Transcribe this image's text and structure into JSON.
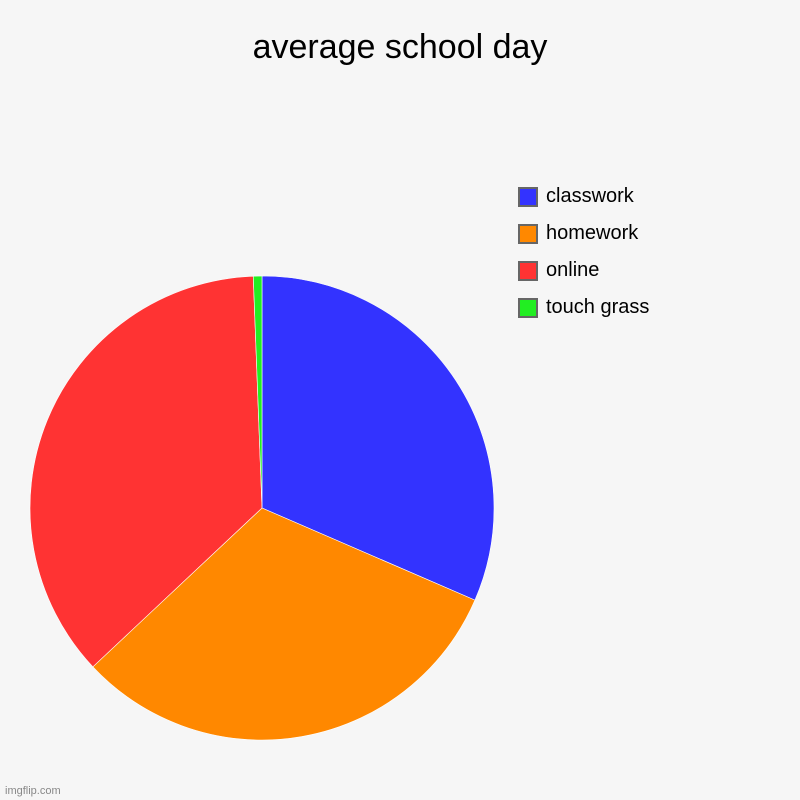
{
  "chart_data": {
    "type": "pie",
    "title": "average school day",
    "start_angle_deg": 0,
    "direction": "clockwise",
    "slices": [
      {
        "label": "classwork",
        "value": 31.5,
        "color": "#3333ff"
      },
      {
        "label": "homework",
        "value": 31.5,
        "color": "#ff8800"
      },
      {
        "label": "online",
        "value": 36.4,
        "color": "#ff3333"
      },
      {
        "label": "touch grass",
        "value": 0.6,
        "color": "#22ee22"
      }
    ],
    "legend_position": "top-right"
  },
  "watermark": "imgflip.com"
}
